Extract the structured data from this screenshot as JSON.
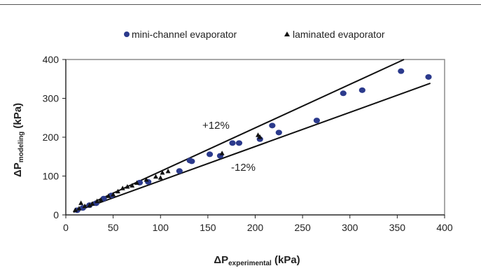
{
  "chart_data": {
    "type": "scatter",
    "xlabel": {
      "main": "ΔP",
      "sub": "experimental",
      "unit": " (kPa)"
    },
    "ylabel": {
      "main": "ΔP",
      "sub": "modeling",
      "unit": " (kPa)"
    },
    "xlim": [
      0,
      400
    ],
    "ylim": [
      0,
      400
    ],
    "xticks": [
      "0",
      "50",
      "100",
      "150",
      "200",
      "250",
      "300",
      "350",
      "400"
    ],
    "yticks": [
      "0",
      "100",
      "200",
      "300",
      "400"
    ],
    "grid": false,
    "legend_position": "top",
    "colors": {
      "mini": "#2b3a8c",
      "laminated": "#111111",
      "line": "#111111",
      "plot_border": "#8c8c8c"
    },
    "series": [
      {
        "name": "mini-channel evaporator",
        "marker": "circle",
        "points": [
          [
            12,
            12
          ],
          [
            18,
            18
          ],
          [
            25,
            25
          ],
          [
            32,
            30
          ],
          [
            40,
            42
          ],
          [
            48,
            50
          ],
          [
            78,
            83
          ],
          [
            87,
            85
          ],
          [
            120,
            113
          ],
          [
            131,
            140
          ],
          [
            133,
            138
          ],
          [
            152,
            156
          ],
          [
            163,
            152
          ],
          [
            176,
            185
          ],
          [
            183,
            185
          ],
          [
            205,
            195
          ],
          [
            218,
            230
          ],
          [
            225,
            212
          ],
          [
            265,
            243
          ],
          [
            293,
            313
          ],
          [
            313,
            321
          ],
          [
            354,
            370
          ],
          [
            383,
            355
          ]
        ]
      },
      {
        "name": "laminated evaporator",
        "marker": "triangle",
        "points": [
          [
            10,
            12
          ],
          [
            14,
            16
          ],
          [
            16,
            30
          ],
          [
            20,
            22
          ],
          [
            25,
            24
          ],
          [
            28,
            28
          ],
          [
            33,
            35
          ],
          [
            37,
            38
          ],
          [
            45,
            48
          ],
          [
            50,
            52
          ],
          [
            55,
            60
          ],
          [
            60,
            68
          ],
          [
            65,
            72
          ],
          [
            70,
            75
          ],
          [
            75,
            82
          ],
          [
            85,
            90
          ],
          [
            95,
            98
          ],
          [
            100,
            95
          ],
          [
            102,
            108
          ],
          [
            108,
            112
          ],
          [
            165,
            158
          ],
          [
            203,
            205
          ],
          [
            205,
            200
          ]
        ]
      }
    ],
    "reference_lines": [
      {
        "label": "+12%",
        "slope": 1.12,
        "x_end": 385
      },
      {
        "label": "-12%",
        "slope": 0.88,
        "x_end": 385
      }
    ]
  }
}
